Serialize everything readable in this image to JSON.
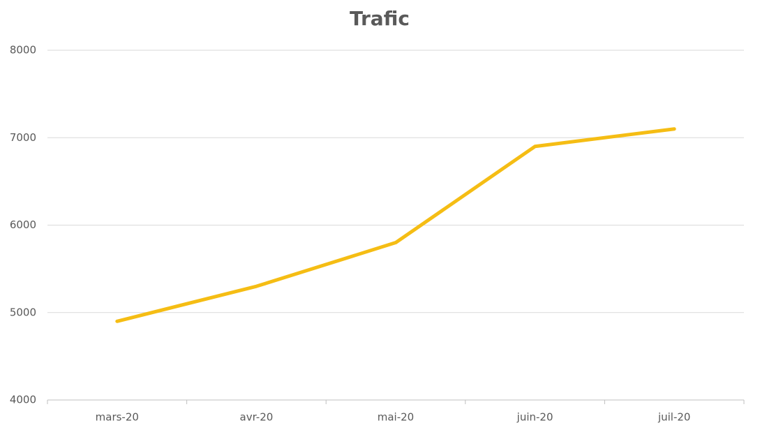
{
  "chart_data": {
    "type": "line",
    "title": "Trafic",
    "categories": [
      "mars-20",
      "avr-20",
      "mai-20",
      "juin-20",
      "juil-20"
    ],
    "values": [
      4900,
      5300,
      5800,
      6900,
      7100
    ],
    "color": "#f5bd14",
    "ylim": [
      4000,
      8000
    ],
    "yticks": [
      4000,
      5000,
      6000,
      7000,
      8000
    ],
    "grid": true
  }
}
